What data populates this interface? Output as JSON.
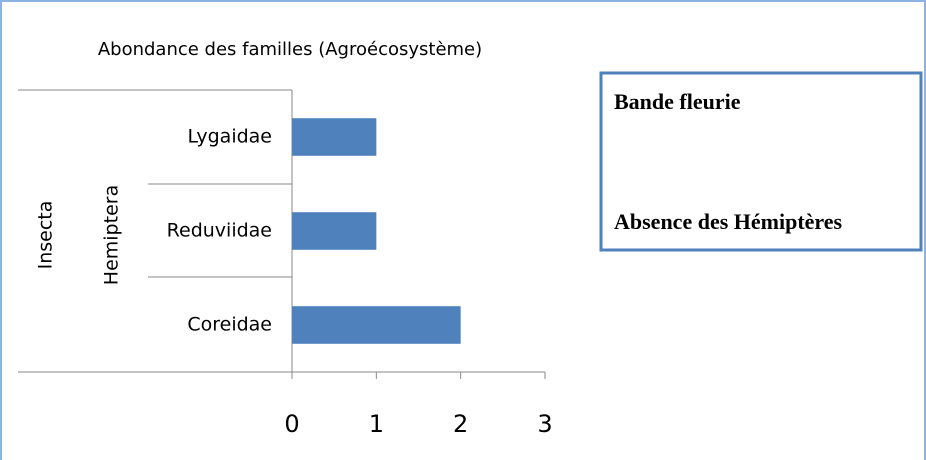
{
  "chart_data": {
    "type": "bar",
    "orientation": "horizontal",
    "title": "Abondance des familles (Agroécosystème)",
    "groups": [
      "Insecta",
      "Hemiptera"
    ],
    "categories": [
      "Lygaidae",
      "Reduviidae",
      "Coreidae"
    ],
    "values": [
      1,
      1,
      2
    ],
    "color": "#4f81bd",
    "xlim": [
      0,
      3
    ],
    "xticks": [
      0,
      1,
      2,
      3
    ],
    "grid": false,
    "annotations": [
      "Bande fleurie",
      "Absence des Hémiptères"
    ]
  }
}
